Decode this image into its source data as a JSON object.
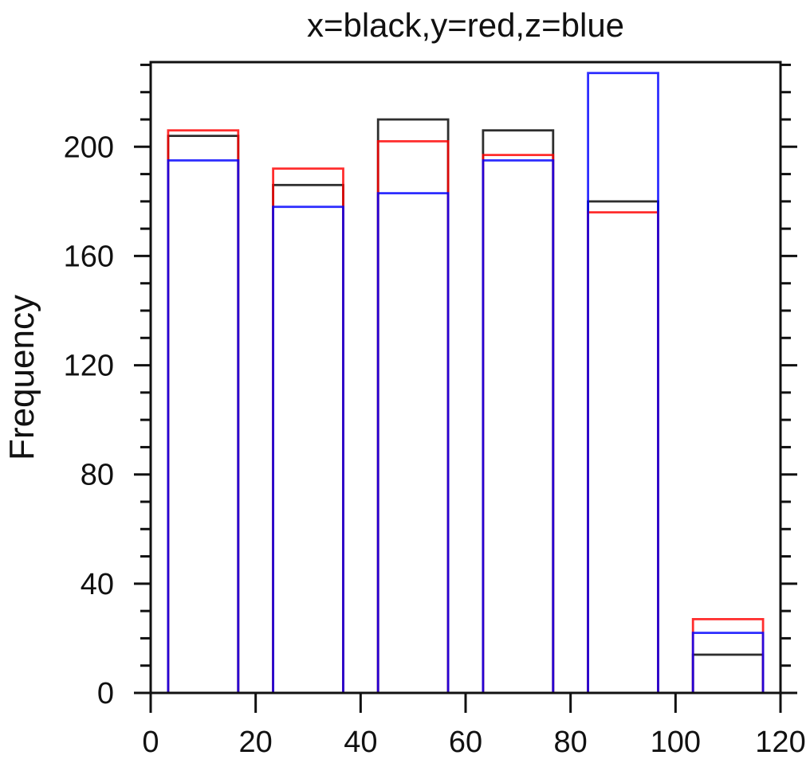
{
  "title": "x=black,y=red,z=blue",
  "ylabel": "Frequency",
  "chart_data": {
    "type": "bar",
    "subtype": "outline-histogram-overlay",
    "title": "x=black,y=red,z=blue",
    "xlabel": "",
    "ylabel": "Frequency",
    "xlim": [
      0,
      120
    ],
    "ylim": [
      0,
      231
    ],
    "bin_edges": [
      0,
      20,
      40,
      60,
      80,
      100,
      120
    ],
    "bin_centers": [
      10,
      30,
      50,
      70,
      90,
      110
    ],
    "bar_half_width": 6.675,
    "series": [
      {
        "name": "x",
        "legend": "x=black",
        "color": "#000000",
        "values": [
          204,
          186,
          210,
          206,
          180,
          14
        ]
      },
      {
        "name": "y",
        "legend": "y=red",
        "color": "#ff0000",
        "values": [
          206,
          192,
          202,
          197,
          176,
          27
        ]
      },
      {
        "name": "z",
        "legend": "z=blue",
        "color": "#0000ff",
        "values": [
          195,
          178,
          183,
          195,
          227,
          22
        ]
      }
    ],
    "x_ticks": [
      0,
      20,
      40,
      60,
      80,
      100,
      120
    ],
    "y_ticks_major": [
      0,
      40,
      80,
      120,
      160,
      200
    ],
    "y_minor_step": 10,
    "y_minor_max": 230,
    "grid": "off",
    "legend_position": "none",
    "axis_color": "#111111",
    "background_color": "#ffffff",
    "stroke_opacity": 0.82
  }
}
